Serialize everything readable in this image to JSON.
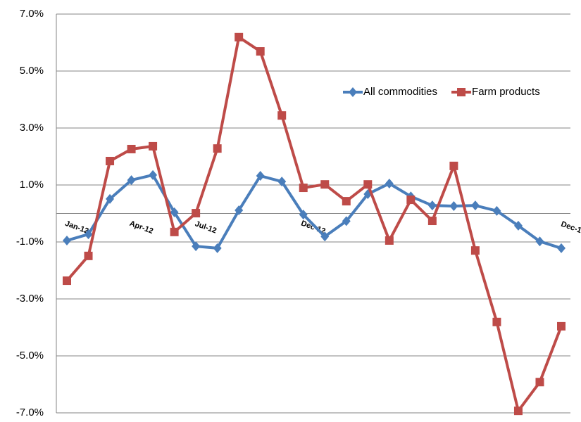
{
  "chart_data": {
    "type": "line",
    "categories": [
      "Jan-12",
      null,
      null,
      "Apr-12",
      null,
      null,
      "Jul-12",
      null,
      null,
      null,
      null,
      "Dec-12",
      null,
      null,
      null,
      null,
      null,
      null,
      null,
      null,
      null,
      null,
      null,
      "Dec-1"
    ],
    "series": [
      {
        "name": "All commodities",
        "color": "#4a7ebb",
        "marker": "diamond",
        "values": [
          -0.95,
          -0.73,
          0.51,
          1.17,
          1.35,
          0.04,
          -1.15,
          -1.22,
          0.11,
          1.32,
          1.12,
          -0.04,
          -0.81,
          -0.27,
          0.68,
          1.05,
          0.6,
          0.28,
          0.26,
          0.28,
          0.09,
          -0.43,
          -0.98,
          -1.22
        ]
      },
      {
        "name": "Farm products",
        "color": "#be4b48",
        "marker": "square",
        "values": [
          -2.36,
          -1.49,
          1.84,
          2.26,
          2.36,
          -0.65,
          0.01,
          2.28,
          6.19,
          5.69,
          3.44,
          0.9,
          1.02,
          0.43,
          1.02,
          -0.95,
          0.48,
          -0.26,
          1.67,
          -1.3,
          -3.81,
          -6.93,
          -5.92,
          -3.96
        ]
      }
    ],
    "ylim": [
      -7,
      7
    ],
    "yticks": [
      {
        "value": -7,
        "label": "-7.0%"
      },
      {
        "value": -5,
        "label": "-5.0%"
      },
      {
        "value": -3,
        "label": "-3.0%"
      },
      {
        "value": -1,
        "label": "-1.0%"
      },
      {
        "value": 1,
        "label": "1.0%"
      },
      {
        "value": 3,
        "label": "3.0%"
      },
      {
        "value": 5,
        "label": "5.0%"
      },
      {
        "value": 7,
        "label": "7.0%"
      }
    ],
    "grid": true,
    "legend": "upper right"
  }
}
